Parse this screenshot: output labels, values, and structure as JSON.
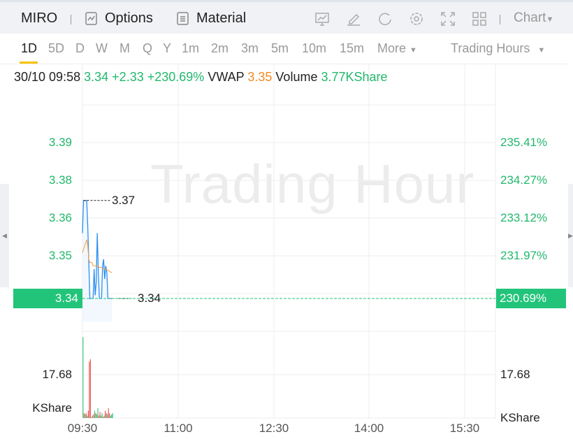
{
  "header": {
    "symbol": "MIRO",
    "options": "Options",
    "material": "Material",
    "chart_menu": "Chart"
  },
  "icons": [
    "indicator-icon",
    "draw-icon",
    "refresh-icon",
    "settings-icon",
    "fullscreen-icon",
    "layout-icon"
  ],
  "tabs": [
    {
      "label": "1D",
      "active": true
    },
    {
      "label": "5D"
    },
    {
      "label": "D"
    },
    {
      "label": "W"
    },
    {
      "label": "M"
    },
    {
      "label": "Q"
    },
    {
      "label": "Y"
    },
    {
      "label": "1m"
    },
    {
      "label": "2m"
    },
    {
      "label": "3m"
    },
    {
      "label": "5m"
    },
    {
      "label": "10m"
    },
    {
      "label": "15m"
    },
    {
      "label": "More"
    }
  ],
  "session": "Trading Hours",
  "info": {
    "time": "30/10 09:58",
    "price": "3.34",
    "change": "+2.33",
    "pct": "+230.69%",
    "vwap_label": "VWAP",
    "vwap": "3.35",
    "volume_label": "Volume",
    "volume": "3.77KShare"
  },
  "watermark": "Trading Hour",
  "chart_data": {
    "type": "line",
    "price_axis": [
      "3.39",
      "3.38",
      "3.36",
      "3.35"
    ],
    "pct_axis": [
      "235.41%",
      "234.27%",
      "233.12%",
      "231.97%"
    ],
    "current_price": "3.34",
    "current_pct": "230.69%",
    "high_label": "3.37",
    "last_label": "3.34",
    "volume_axis": "17.68",
    "volume_unit": "KShare",
    "time_axis": [
      "09:30",
      "11:00",
      "12:30",
      "14:00",
      "15:30"
    ],
    "start": "09:30",
    "end": "16:00",
    "colors": {
      "price": "#2b8ef0",
      "vwap": "#f5a03c",
      "up": "#f25b5b",
      "down": "#3cc680",
      "accent": "#22c47a"
    },
    "price": [
      3.36,
      3.37,
      3.37,
      3.37,
      3.37,
      3.362,
      3.351,
      3.34,
      3.34,
      3.34,
      3.34,
      3.349,
      3.341,
      3.345,
      3.36,
      3.348,
      3.34,
      3.34,
      3.34,
      3.35,
      3.352,
      3.346,
      3.35,
      3.348,
      3.34,
      3.34,
      3.34,
      3.34,
      3.34
    ],
    "vwap": [
      3.354,
      3.355,
      3.356,
      3.357,
      3.358,
      3.356,
      3.352,
      3.351,
      3.351,
      3.351,
      3.35,
      3.35,
      3.35,
      3.35,
      3.35,
      3.35,
      3.3495,
      3.3495,
      3.3495,
      3.349,
      3.349,
      3.349,
      3.349,
      3.3488,
      3.3486,
      3.3484,
      3.3482,
      3.348,
      3.348
    ],
    "volume": [
      33,
      2,
      1.5,
      2,
      1,
      3,
      23,
      24,
      0.5,
      1,
      1.5,
      3,
      2,
      1.5,
      4,
      1,
      2.5,
      1,
      2,
      0.5,
      1,
      3,
      2,
      1.5,
      4,
      2,
      1,
      1.5,
      2
    ],
    "volume_up": [
      false,
      true,
      false,
      true,
      false,
      true,
      true,
      true,
      false,
      false,
      true,
      false,
      true,
      false,
      false,
      true,
      true,
      false,
      false,
      true,
      false,
      true,
      true,
      false,
      true,
      true,
      false,
      false,
      false
    ]
  }
}
